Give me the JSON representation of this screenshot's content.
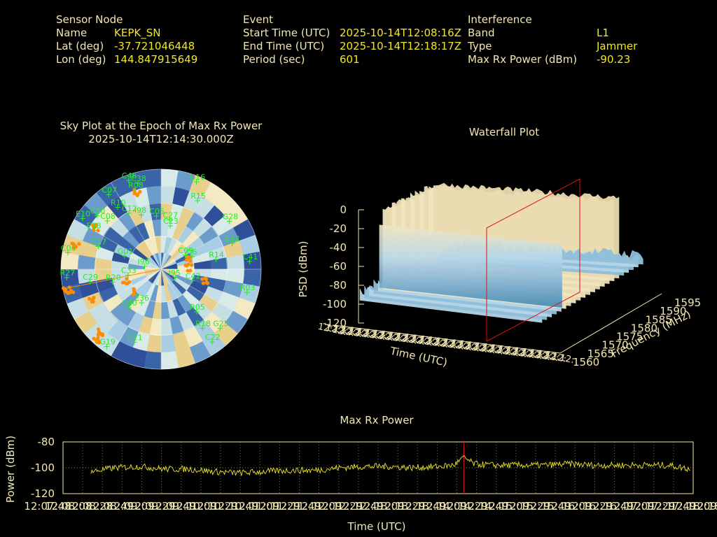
{
  "info": {
    "sensor": {
      "header": "Sensor Node",
      "rows": [
        {
          "label": "Name",
          "value": "KEPK_SN"
        },
        {
          "label": "Lat (deg)",
          "value": "-37.721046448"
        },
        {
          "label": "Lon (deg)",
          "value": "144.847915649"
        }
      ]
    },
    "event": {
      "header": "Event",
      "rows": [
        {
          "label": "Start Time (UTC)",
          "value": "2025-10-14T12:08:16Z"
        },
        {
          "label": "End Time (UTC)",
          "value": "2025-10-14T12:18:17Z"
        },
        {
          "label": "Period (sec)",
          "value": "601"
        }
      ]
    },
    "interference": {
      "header": "Interference",
      "rows": [
        {
          "label": "Band",
          "value": "L1"
        },
        {
          "label": "Type",
          "value": "Jammer"
        },
        {
          "label": "Max Rx Power (dBm)",
          "value": "-90.23"
        }
      ]
    }
  },
  "colors": {
    "text": "#f2e7b2",
    "value": "#f2e629",
    "satellite": "#22ee22",
    "orange": "#ff8c00",
    "marker_line": "#dd1111",
    "trace": "#f2e629"
  },
  "sky": {
    "title_line1": "Sky Plot at the Epoch of Max Rx Power",
    "title_line2": "2025-10-14T12:14:30.000Z"
  },
  "waterfall": {
    "title": "Waterfall Plot",
    "zlabel": "PSD (dBm)",
    "xlabel": "Time (UTC)",
    "ylabel": "Frequency (MHz)",
    "z_ticks": [
      "0",
      "-20",
      "-40",
      "-60",
      "-80",
      "-100",
      "-120"
    ],
    "freq_ticks": [
      "1560",
      "1565",
      "1570",
      "1575",
      "1580",
      "1585",
      "1590",
      "1595"
    ]
  },
  "chart_data": [
    {
      "type": "scatter",
      "title": "Sky Plot at the Epoch of Max Rx Power",
      "subtitle": "2025-10-14T12:14:30.000Z",
      "projection": "polar",
      "satellites": [
        {
          "id": "C46",
          "az": 340,
          "el": 5
        },
        {
          "id": "C38",
          "az": 345,
          "el": 10
        },
        {
          "id": "R08",
          "az": 342,
          "el": 15
        },
        {
          "id": "C07",
          "az": 325,
          "el": 8
        },
        {
          "id": "E10",
          "az": 303,
          "el": 6
        },
        {
          "id": "C10",
          "az": 310,
          "el": 15
        },
        {
          "id": "R10",
          "az": 325,
          "el": 22
        },
        {
          "id": "C08",
          "az": 312,
          "el": 25
        },
        {
          "id": "C12",
          "az": 330,
          "el": 32
        },
        {
          "id": "I98",
          "az": 340,
          "el": 38
        },
        {
          "id": "C05",
          "az": 355,
          "el": 42
        },
        {
          "id": "C27",
          "az": 10,
          "el": 45
        },
        {
          "id": "C23",
          "az": 12,
          "el": 50
        },
        {
          "id": "G16",
          "az": 22,
          "el": 5
        },
        {
          "id": "R15",
          "az": 28,
          "el": 20
        },
        {
          "id": "G28",
          "az": 55,
          "el": 15
        },
        {
          "id": "E12",
          "az": 70,
          "el": 22
        },
        {
          "id": "I06",
          "az": 68,
          "el": 60
        },
        {
          "id": "C09",
          "az": 60,
          "el": 65
        },
        {
          "id": "R14",
          "az": 80,
          "el": 40
        },
        {
          "id": "C41",
          "az": 85,
          "el": 10
        },
        {
          "id": "R03",
          "az": 105,
          "el": 10
        },
        {
          "id": "C42",
          "az": 110,
          "el": 60
        },
        {
          "id": "I95",
          "az": 120,
          "el": 75
        },
        {
          "id": "R05",
          "az": 140,
          "el": 40
        },
        {
          "id": "R18",
          "az": 145,
          "el": 25
        },
        {
          "id": "G25",
          "az": 135,
          "el": 15
        },
        {
          "id": "C22",
          "az": 145,
          "el": 10
        },
        {
          "id": "R21",
          "az": 200,
          "el": 20
        },
        {
          "id": "G19",
          "az": 215,
          "el": 5
        },
        {
          "id": "C40",
          "az": 220,
          "el": 45
        },
        {
          "id": "E36",
          "az": 210,
          "el": 55
        },
        {
          "id": "R20",
          "az": 255,
          "el": 45
        },
        {
          "id": "C29",
          "az": 260,
          "el": 25
        },
        {
          "id": "R27",
          "az": 265,
          "el": 5
        },
        {
          "id": "C17",
          "az": 290,
          "el": 30
        },
        {
          "id": "G01",
          "az": 290,
          "el": 55
        },
        {
          "id": "C06",
          "az": 280,
          "el": 5
        },
        {
          "id": "I96",
          "az": 280,
          "el": 75
        },
        {
          "id": "E18",
          "az": 300,
          "el": 20
        },
        {
          "id": "C33",
          "az": 260,
          "el": 60
        }
      ]
    },
    {
      "type": "area",
      "title": "Waterfall Plot",
      "zlabel": "PSD (dBm)",
      "xlabel": "Time (UTC)",
      "ylabel": "Frequency (MHz)",
      "zlim": [
        -120,
        0
      ],
      "ylim": [
        1560,
        1595
      ],
      "y_ticks": [
        1560,
        1565,
        1570,
        1575,
        1580,
        1585,
        1590,
        1595
      ],
      "z_ticks": [
        0,
        -20,
        -40,
        -60,
        -80,
        -100,
        -120
      ],
      "plateau_psd_dbm": -5,
      "plateau_freq_range": [
        1568,
        1586
      ],
      "noise_floor_dbm": -80,
      "marker_time": "12:14:30"
    },
    {
      "type": "line",
      "title": "Max Rx Power",
      "xlabel": "Time (UTC)",
      "ylabel": "Power (dBm)",
      "ylim": [
        -120,
        -80
      ],
      "y_ticks": [
        "-80",
        "-100",
        "-120"
      ],
      "x_ticks": [
        "12:07:48",
        "12:08:08",
        "12:08:28",
        "12:08:49",
        "12:09:09",
        "12:09:29",
        "12:09:49",
        "12:10:09",
        "12:10:29",
        "12:10:49",
        "12:11:09",
        "12:11:29",
        "12:11:49",
        "12:12:09",
        "12:12:29",
        "12:12:49",
        "12:13:09",
        "12:13:29",
        "12:13:49",
        "12:14:09",
        "12:14:29",
        "12:14:49",
        "12:15:09",
        "12:15:29",
        "12:15:49",
        "12:16:09",
        "12:16:29",
        "12:16:49",
        "12:17:09",
        "12:17:29",
        "12:17:49",
        "12:18:09",
        "12:18:20"
      ],
      "marker_x": "12:14:30",
      "series": [
        {
          "x": [
            "12:08:16",
            "12:08:40",
            "12:09:05",
            "12:09:30",
            "12:09:55",
            "12:10:20",
            "12:10:45",
            "12:11:10",
            "12:11:35",
            "12:12:00",
            "12:12:25",
            "12:12:50",
            "12:13:15",
            "12:13:40",
            "12:14:05",
            "12:14:20",
            "12:14:30",
            "12:14:40",
            "12:15:00",
            "12:15:25",
            "12:15:50",
            "12:16:15",
            "12:16:40",
            "12:17:05",
            "12:17:30",
            "12:17:55",
            "12:18:17"
          ],
          "values": [
            -103,
            -100,
            -99,
            -101,
            -101,
            -103,
            -104,
            -103,
            -102,
            -102,
            -100,
            -99,
            -99,
            -100,
            -99,
            -98,
            -92,
            -97,
            -98,
            -98,
            -98,
            -97,
            -98,
            -98,
            -98,
            -98,
            -101
          ]
        }
      ]
    }
  ],
  "rx": {
    "title": "Max Rx Power",
    "ylabel": "Power (dBm)",
    "xlabel": "Time (UTC)"
  }
}
